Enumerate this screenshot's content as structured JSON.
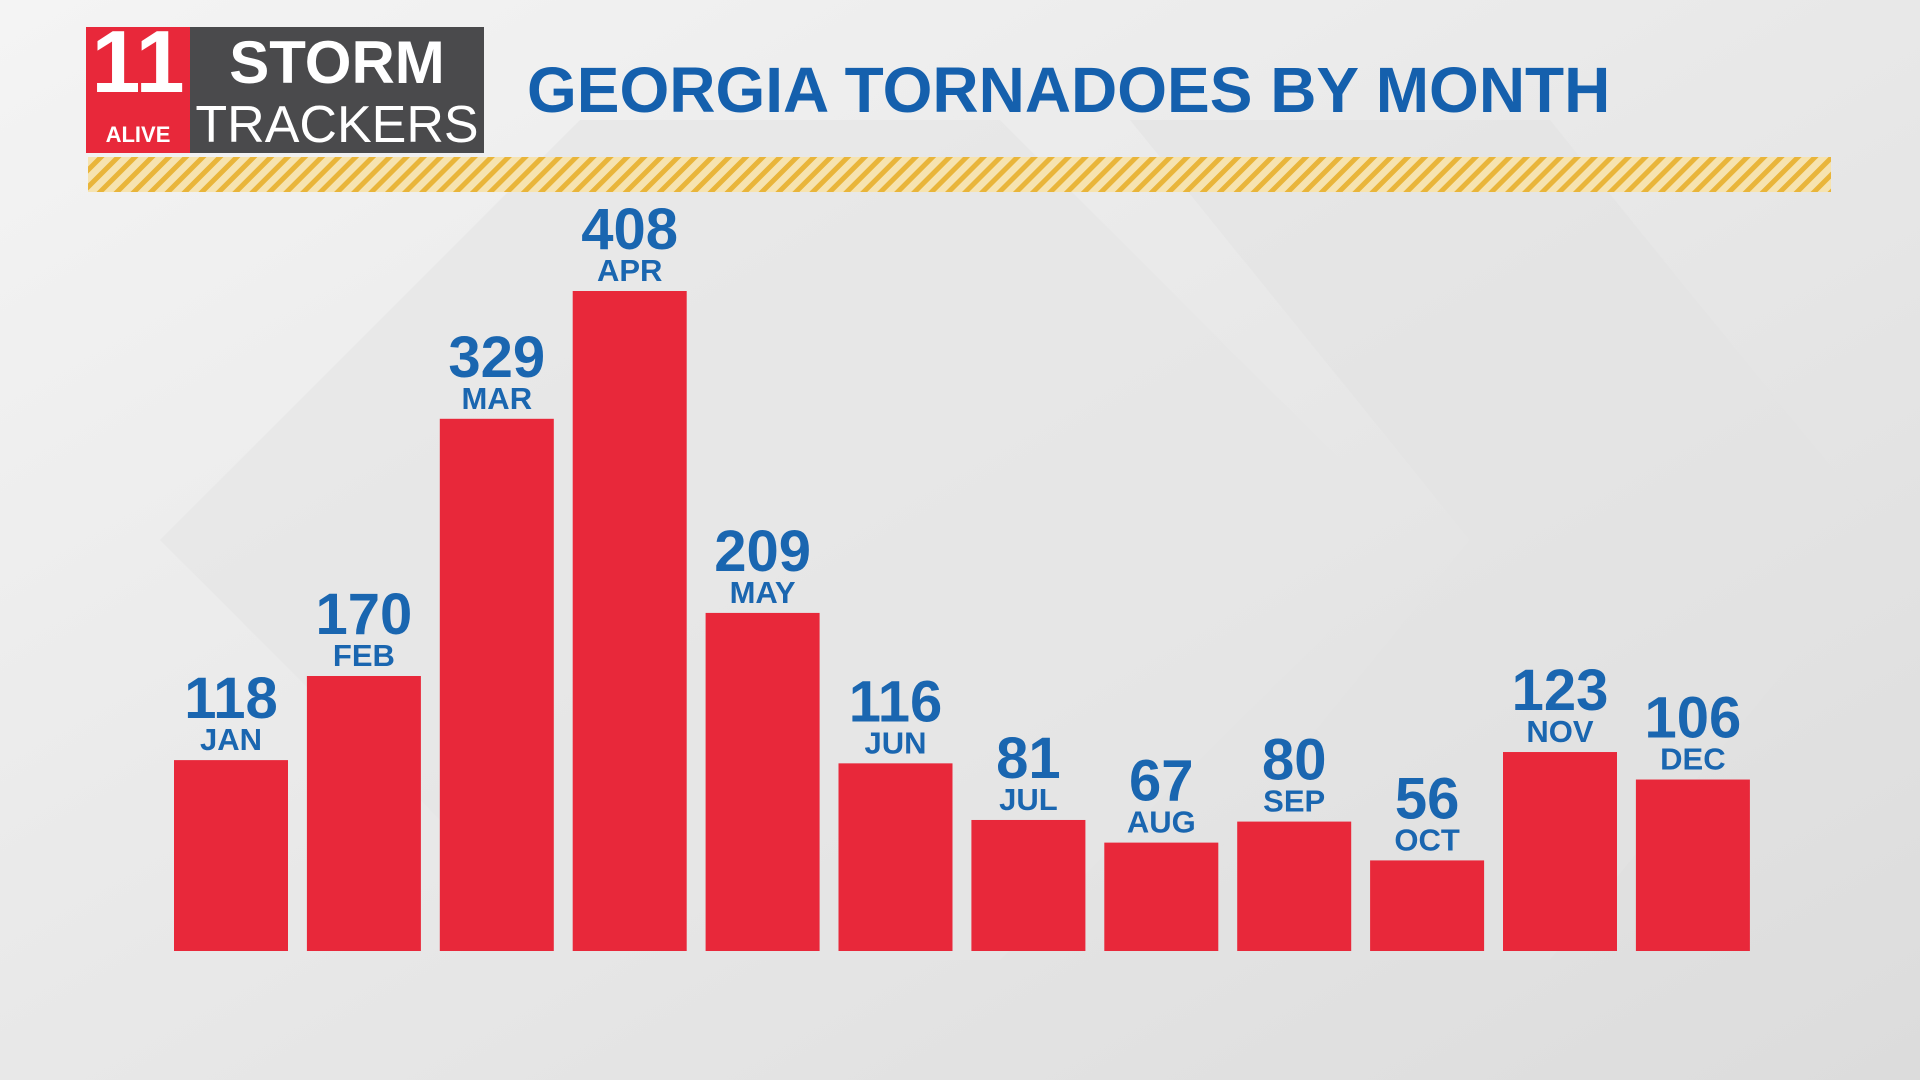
{
  "logo": {
    "number": "11",
    "station": "ALIVE",
    "line1": "STORM",
    "line2": "TRACKERS"
  },
  "chart_data": {
    "type": "bar",
    "title": "GEORGIA TORNADOES BY MONTH",
    "categories": [
      "JAN",
      "FEB",
      "MAR",
      "APR",
      "MAY",
      "JUN",
      "JUL",
      "AUG",
      "SEP",
      "OCT",
      "NOV",
      "DEC"
    ],
    "values": [
      118,
      170,
      329,
      408,
      209,
      116,
      81,
      67,
      80,
      56,
      123,
      106
    ],
    "color": "#e8283a",
    "label_color": "#1a66b0"
  }
}
